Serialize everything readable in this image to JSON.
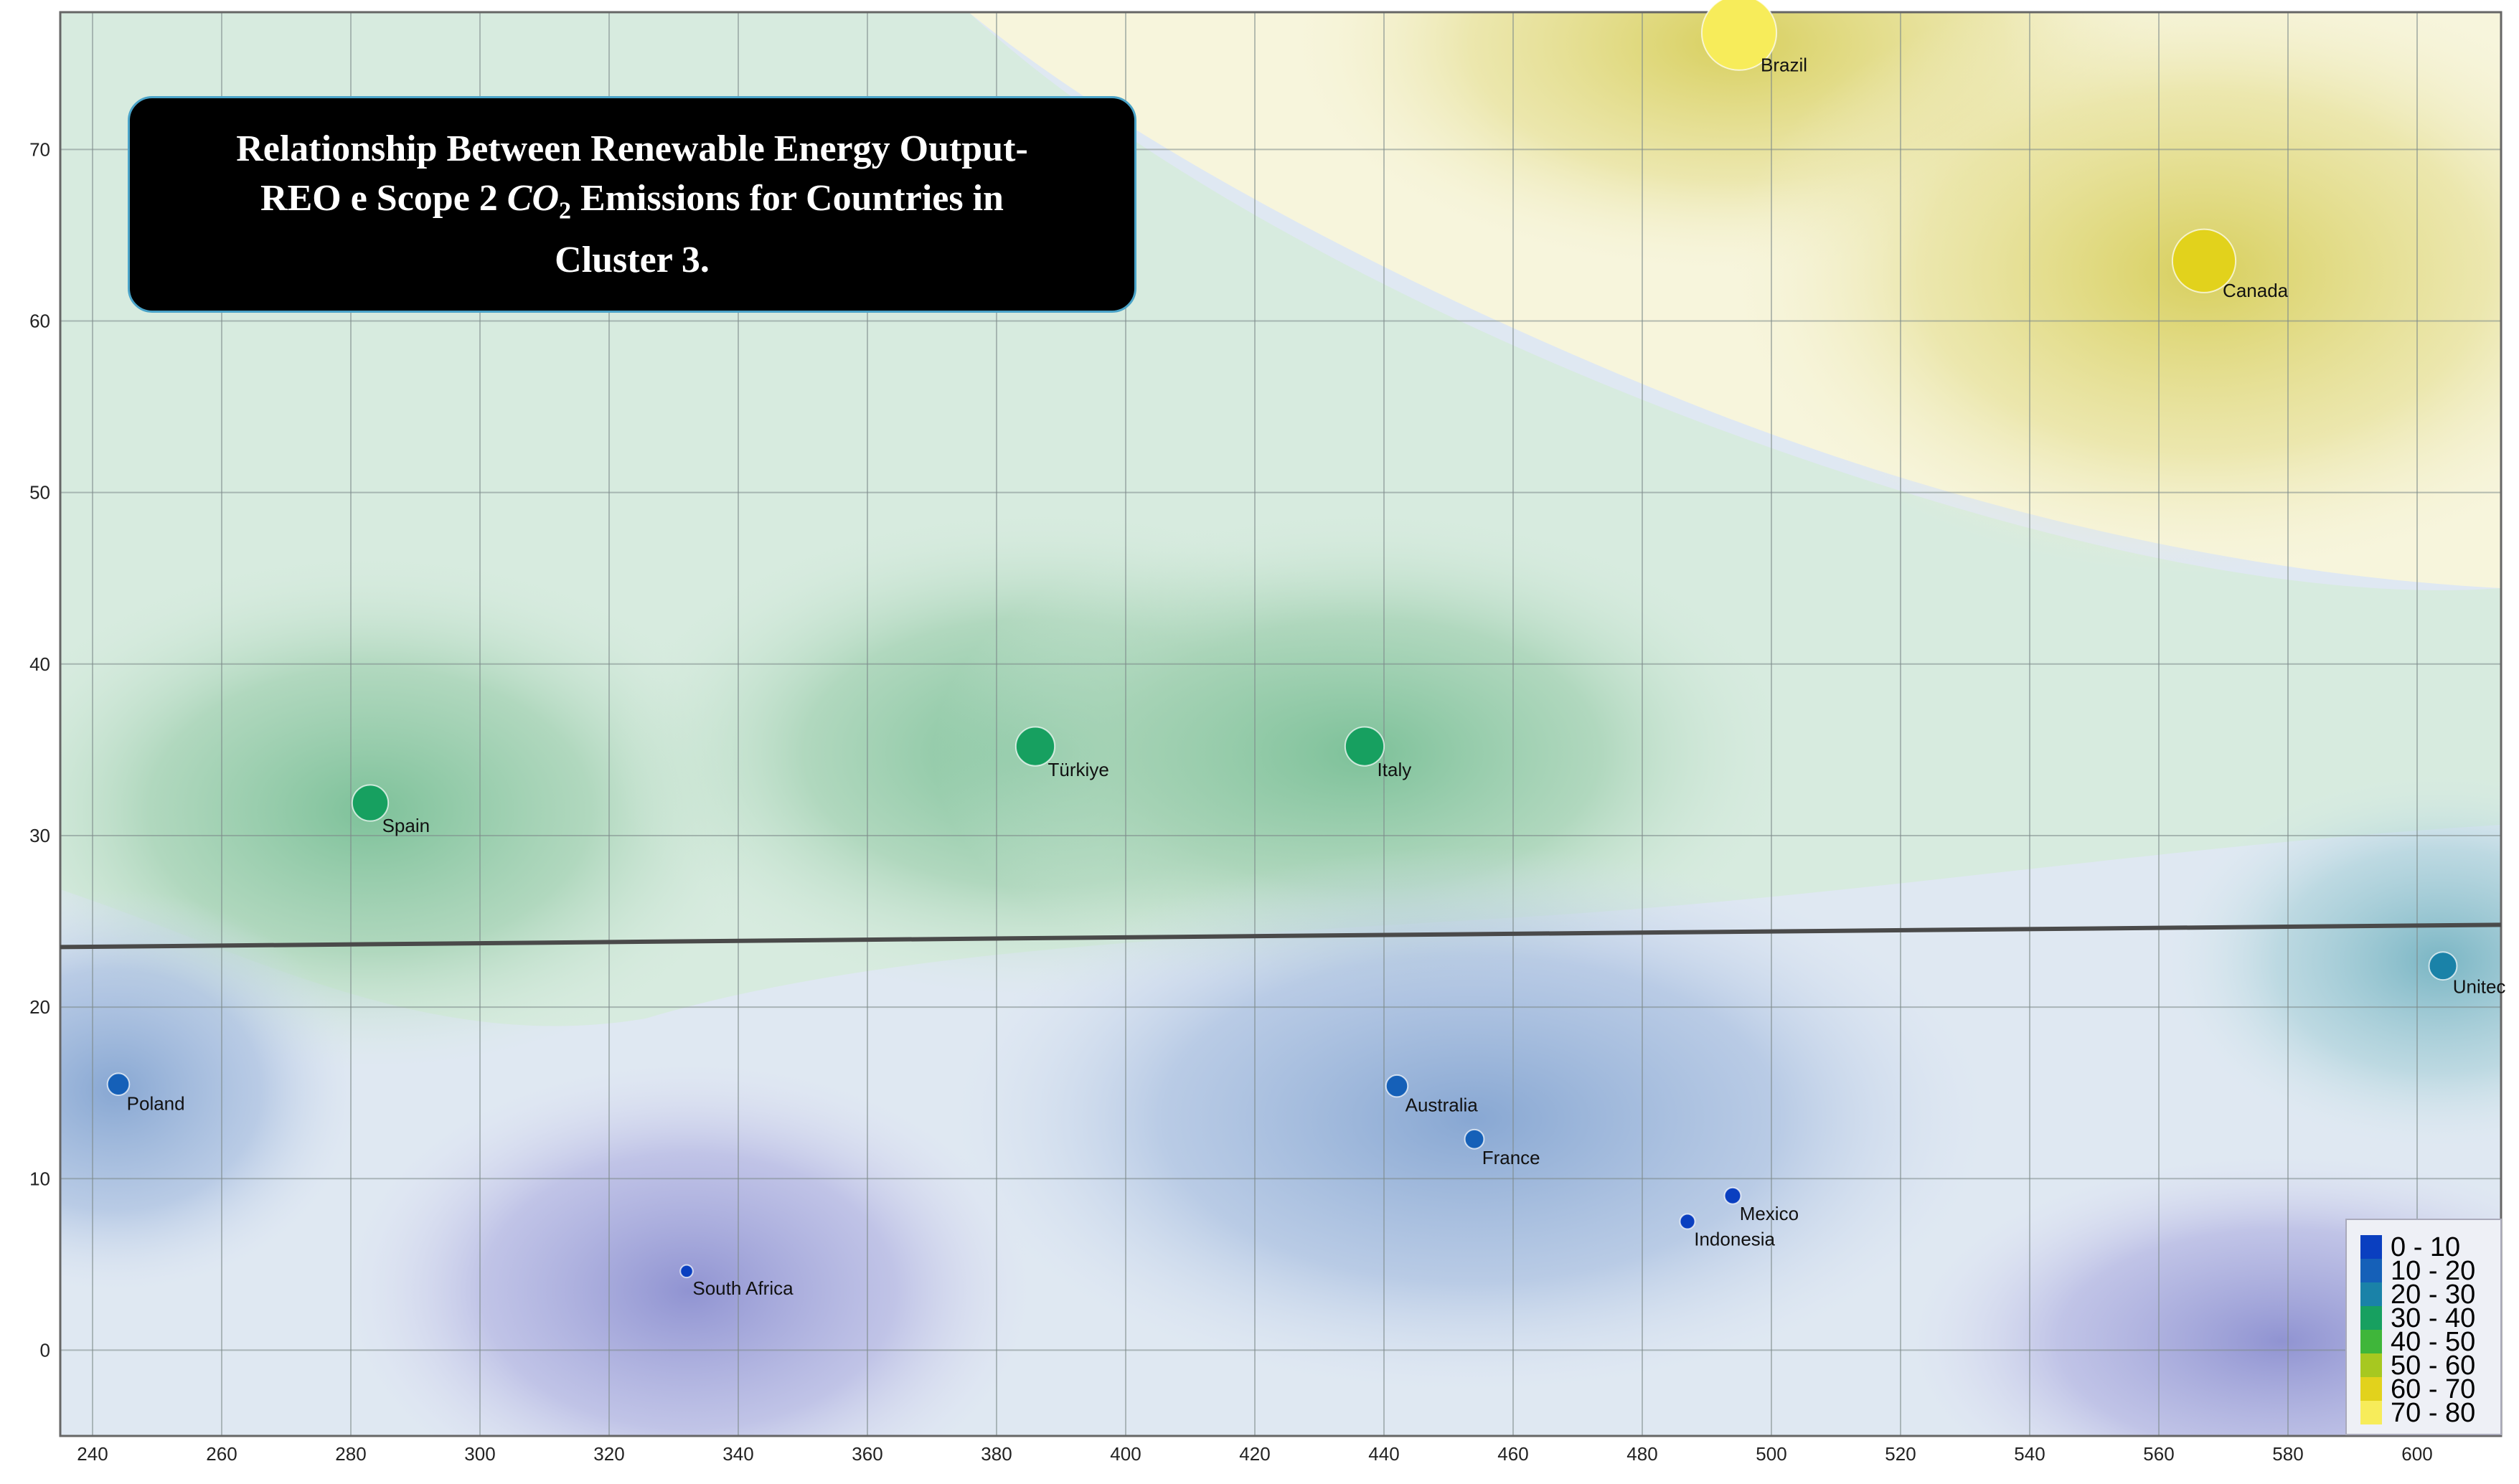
{
  "chart_data": {
    "type": "scatter",
    "title": "Relationship Between Renewable Energy Output-REO e Scope 2 CO₂ Emissions for Countries in Cluster 3.",
    "xlabel": "",
    "ylabel": "",
    "xlim": [
      235,
      613
    ],
    "ylim": [
      -5,
      78
    ],
    "x_ticks": [
      240,
      260,
      280,
      300,
      320,
      340,
      360,
      380,
      400,
      420,
      440,
      460,
      480,
      500,
      520,
      540,
      560,
      580,
      600
    ],
    "y_ticks": [
      0,
      10,
      20,
      30,
      40,
      50,
      60,
      70
    ],
    "grid": true,
    "trendline": {
      "x": [
        235,
        613
      ],
      "y": [
        23.5,
        24.8
      ]
    },
    "points": [
      {
        "label": "Brazil",
        "x": 495,
        "y": 76.8,
        "class": "70 - 80"
      },
      {
        "label": "Canada",
        "x": 567,
        "y": 63.5,
        "class": "60 - 70"
      },
      {
        "label": "Spain",
        "x": 283,
        "y": 31.9,
        "class": "30 - 40"
      },
      {
        "label": "Türkiye",
        "x": 386,
        "y": 35.2,
        "class": "30 - 40"
      },
      {
        "label": "Italy",
        "x": 437,
        "y": 35.2,
        "class": "30 - 40"
      },
      {
        "label": "Unitec",
        "x": 604,
        "y": 22.4,
        "class": "20 - 30"
      },
      {
        "label": "Poland",
        "x": 244,
        "y": 15.5,
        "class": "10 - 20"
      },
      {
        "label": "Australia",
        "x": 442,
        "y": 15.4,
        "class": "10 - 20"
      },
      {
        "label": "France",
        "x": 454,
        "y": 12.3,
        "class": "10 - 20"
      },
      {
        "label": "Mexico",
        "x": 494,
        "y": 9.0,
        "class": "0 - 10"
      },
      {
        "label": "Indonesia",
        "x": 487,
        "y": 7.5,
        "class": "0 - 10"
      },
      {
        "label": "South Africa",
        "x": 332,
        "y": 4.6,
        "class": "0 - 10"
      }
    ],
    "legend": {
      "placement": "bottom-right",
      "entries": [
        {
          "label": "0 - 10",
          "color": "#0a3fc0"
        },
        {
          "label": "10 - 20",
          "color": "#1560b8"
        },
        {
          "label": "20 - 30",
          "color": "#1a82a8"
        },
        {
          "label": "30 - 40",
          "color": "#17a060"
        },
        {
          "label": "40 - 50",
          "color": "#3fb63a"
        },
        {
          "label": "50 - 60",
          "color": "#a7c820"
        },
        {
          "label": "60 - 70",
          "color": "#e2d21c"
        },
        {
          "label": "70 - 80",
          "color": "#f7ec5a"
        }
      ]
    }
  },
  "title_box": {
    "line1": "Relationship Between Renewable Energy Output-",
    "line2_pre": "REO e Scope 2 ",
    "co": "CO",
    "sub": "2",
    "line2_post": " Emissions for Countries in",
    "line3": "Cluster 3."
  }
}
